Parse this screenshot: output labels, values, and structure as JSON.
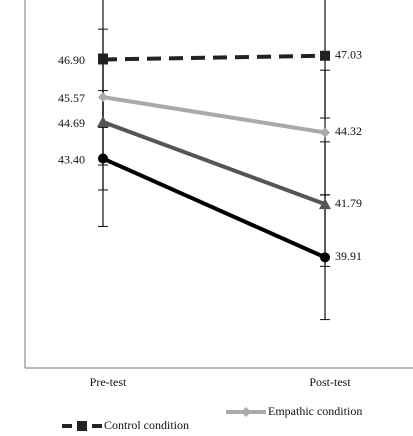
{
  "chart_data": {
    "type": "line",
    "categories": [
      "Pre-test",
      "Post-test"
    ],
    "ylim": [
      36,
      49
    ],
    "series": [
      {
        "name": "Control condition",
        "color": "#222222",
        "dash": true,
        "marker": "square",
        "values": [
          46.9,
          47.03
        ],
        "value_labels": [
          "46.90",
          "47.03"
        ],
        "errors": [
          2.4,
          2.2
        ]
      },
      {
        "name": "Empathic condition",
        "color": "#aaaaaa",
        "dash": false,
        "marker": "diamond",
        "values": [
          45.57,
          44.32
        ],
        "value_labels": [
          "45.57",
          "44.32"
        ],
        "errors": [
          2.4,
          2.2
        ]
      },
      {
        "color": "#555555",
        "dash": false,
        "marker": "triangle",
        "values": [
          44.69,
          41.79
        ],
        "value_labels": [
          "44.69",
          "41.79"
        ],
        "errors": [
          2.4,
          2.2
        ]
      },
      {
        "color": "#000000",
        "dash": false,
        "marker": "circle",
        "values": [
          43.4,
          39.91
        ],
        "value_labels": [
          "43.40",
          "39.91"
        ],
        "errors": [
          2.4,
          2.2
        ]
      }
    ]
  }
}
